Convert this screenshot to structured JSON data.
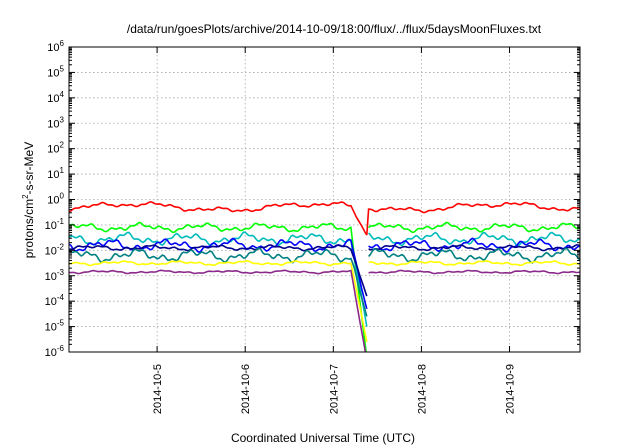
{
  "chart_data": {
    "type": "line",
    "title": "/data/run/goesPlots/archive/2014-10-09/18:00/flux/../flux/5daysMoonFluxes.txt",
    "xlabel": "Coordinated Universal Time (UTC)",
    "ylabel": "protons/cm²-s-sr-MeV",
    "ylabel_parts": {
      "before": "protons/cm",
      "sup": "2",
      "after": "-s-sr-MeV"
    },
    "yscale": "log",
    "ylim_exp": [
      -6,
      6
    ],
    "y_ticks": [
      {
        "base": "10",
        "exp": "-6"
      },
      {
        "base": "10",
        "exp": "-5"
      },
      {
        "base": "10",
        "exp": "-4"
      },
      {
        "base": "10",
        "exp": "-3"
      },
      {
        "base": "10",
        "exp": "-2"
      },
      {
        "base": "10",
        "exp": "-1"
      },
      {
        "base": "10",
        "exp": "0"
      },
      {
        "base": "10",
        "exp": "1"
      },
      {
        "base": "10",
        "exp": "2"
      },
      {
        "base": "10",
        "exp": "3"
      },
      {
        "base": "10",
        "exp": "4"
      },
      {
        "base": "10",
        "exp": "5"
      },
      {
        "base": "10",
        "exp": "6"
      }
    ],
    "xlim_days": [
      4.0,
      9.8
    ],
    "x_ticks": [
      "2014-10-5",
      "2014-10-6",
      "2014-10-7",
      "2014-10-8",
      "2014-10-9"
    ],
    "x_tick_days": [
      5,
      6,
      7,
      8,
      9
    ],
    "grid": true,
    "legend": "none",
    "series": [
      {
        "color": "#ff0000",
        "base": -0.3,
        "amp": 0.13,
        "drop_to": -1.4,
        "data_gap": true
      },
      {
        "color": "#00ff00",
        "base": -1.1,
        "amp": 0.2,
        "drop_to": -6.2
      },
      {
        "color": "#00bbbb",
        "base": -1.55,
        "amp": 0.28,
        "drop_to": -5.0
      },
      {
        "color": "#0000ff",
        "base": -1.8,
        "amp": 0.28,
        "drop_to": -4.3
      },
      {
        "color": "#00008b",
        "base": -1.9,
        "amp": 0.12,
        "drop_to": -3.8
      },
      {
        "color": "#008080",
        "base": -2.2,
        "amp": 0.3,
        "drop_to": -4.6
      },
      {
        "color": "#ffff00",
        "base": -2.5,
        "amp": 0.1,
        "drop_to": -5.6
      },
      {
        "color": "#8b2a8b",
        "base": -2.85,
        "amp": 0.07,
        "drop_to": -6.3
      }
    ]
  }
}
